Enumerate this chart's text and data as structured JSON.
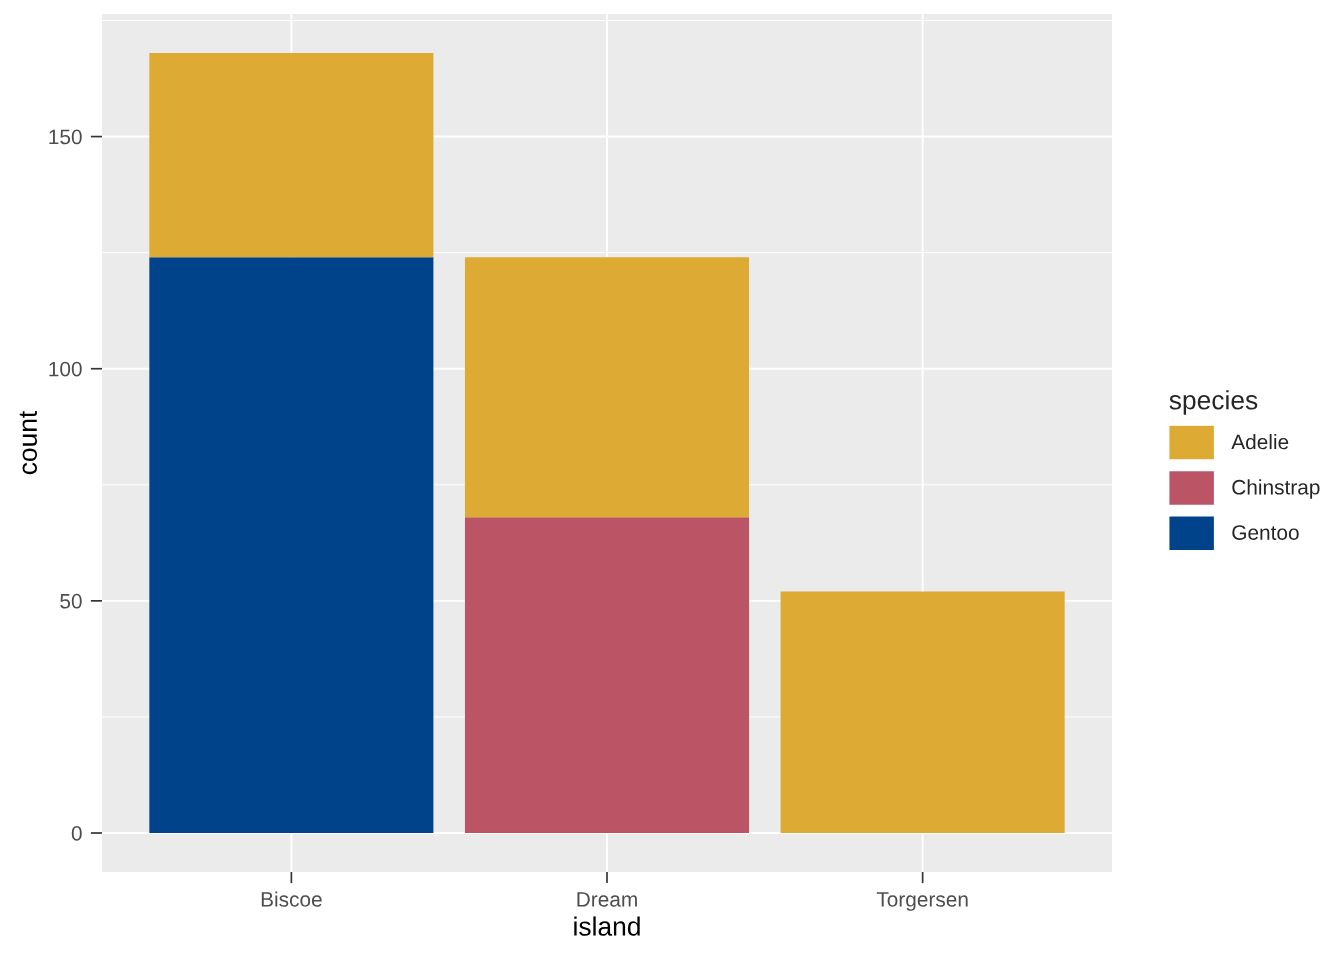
{
  "chart_data": {
    "type": "bar",
    "stacked": true,
    "xlabel": "island",
    "ylabel": "count",
    "legend_title": "species",
    "legend": "right",
    "grid": true,
    "categories": [
      "Biscoe",
      "Dream",
      "Torgersen"
    ],
    "series": [
      {
        "name": "Gentoo",
        "color": "#00438a",
        "values": [
          124,
          null,
          null
        ]
      },
      {
        "name": "Chinstrap",
        "color": "#bb5566",
        "values": [
          null,
          68,
          null
        ]
      },
      {
        "name": "Adelie",
        "color": "#ddaa33",
        "values": [
          44,
          56,
          52
        ]
      }
    ],
    "ylim": [
      -8.4,
      176.4
    ],
    "yticks": [
      0,
      50,
      100,
      150
    ]
  }
}
